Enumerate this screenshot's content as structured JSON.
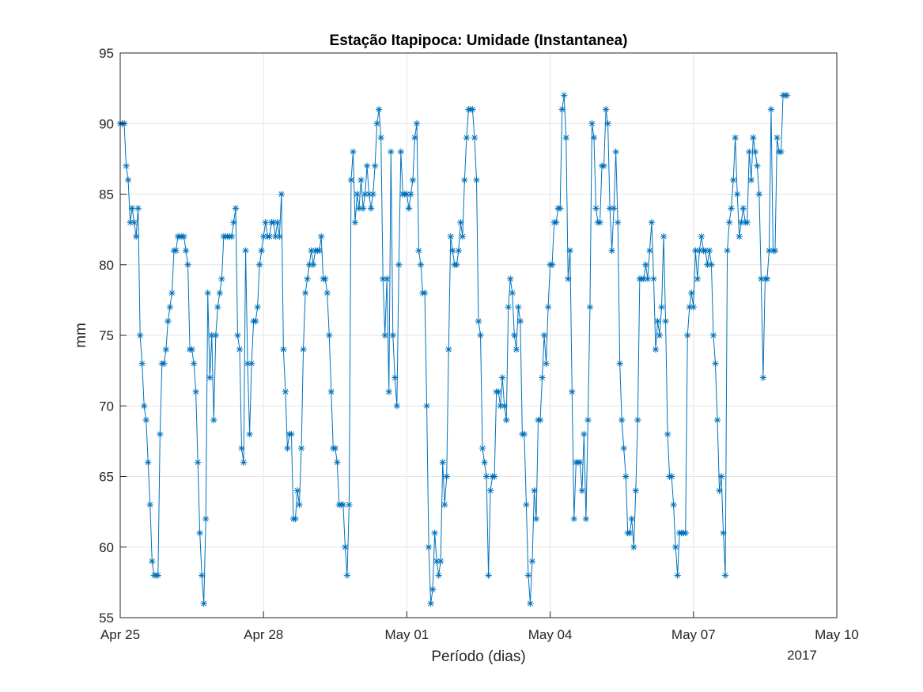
{
  "chart_data": {
    "type": "line",
    "title": "Estação Itapipoca: Umidade (Instantanea)",
    "xlabel": "Período (dias)",
    "ylabel": "mm",
    "x_ticks": [
      "Apr 25",
      "Apr 28",
      "May 01",
      "May 04",
      "May 07",
      "May 10"
    ],
    "x_tick_days": [
      0,
      3,
      6,
      9,
      12,
      15
    ],
    "x_year_label": "2017",
    "xlim_days": [
      0,
      15
    ],
    "ylim": [
      55,
      95
    ],
    "y_ticks": [
      55,
      60,
      65,
      70,
      75,
      80,
      85,
      90,
      95
    ],
    "grid": true,
    "marker": "asterisk",
    "series_color": "#0072BD",
    "x_step_hours": 1,
    "series": [
      {
        "values": [
          90,
          90,
          90,
          87,
          86,
          83,
          84,
          83,
          82,
          84,
          75,
          73,
          70,
          69,
          66,
          63,
          59,
          58,
          58,
          58,
          68,
          73,
          73,
          74,
          76,
          77,
          78,
          81,
          81,
          82,
          82,
          82,
          82,
          81,
          80,
          74,
          74,
          73,
          71,
          66,
          61,
          58,
          56,
          62,
          78,
          72,
          75,
          69,
          75,
          77,
          78,
          79,
          82,
          82,
          82,
          82,
          82,
          83,
          84,
          75,
          74,
          67,
          66,
          81,
          73,
          68,
          73,
          76,
          76,
          77,
          80,
          81,
          82,
          83,
          82,
          82,
          83,
          83,
          82,
          83,
          82,
          85,
          74,
          71,
          67,
          68,
          68,
          62,
          62,
          64,
          63,
          67,
          74,
          78,
          79,
          80,
          81,
          80,
          81,
          81,
          81,
          82,
          79,
          79,
          78,
          75,
          71,
          67,
          67,
          66,
          63,
          63,
          63,
          60,
          58,
          63,
          86,
          88,
          83,
          85,
          84,
          86,
          84,
          85,
          87,
          85,
          84,
          85,
          87,
          90,
          91,
          89,
          79,
          75,
          79,
          71,
          88,
          75,
          72,
          70,
          80,
          88,
          85,
          85,
          85,
          84,
          85,
          86,
          89,
          90,
          81,
          80,
          78,
          78,
          70,
          60,
          56,
          57,
          61,
          59,
          58,
          59,
          66,
          63,
          65,
          74,
          82,
          81,
          80,
          80,
          81,
          83,
          82,
          86,
          89,
          91,
          91,
          91,
          89,
          86,
          76,
          75,
          67,
          66,
          65,
          58,
          64,
          65,
          65,
          71,
          71,
          70,
          72,
          70,
          69,
          77,
          79,
          78,
          75,
          74,
          77,
          76,
          68,
          68,
          63,
          58,
          56,
          59,
          64,
          62,
          69,
          69,
          72,
          75,
          73,
          77,
          80,
          80,
          83,
          83,
          84,
          84,
          91,
          92,
          89,
          79,
          81,
          71,
          62,
          66,
          66,
          66,
          64,
          68,
          62,
          69,
          77,
          90,
          89,
          84,
          83,
          83,
          87,
          87,
          91,
          90,
          84,
          81,
          84,
          88,
          83,
          73,
          69,
          67,
          65,
          61,
          61,
          62,
          60,
          64,
          69,
          79,
          79,
          79,
          80,
          79,
          81,
          83,
          79,
          74,
          76,
          75,
          77,
          82,
          76,
          68,
          65,
          65,
          63,
          60,
          58,
          61,
          61,
          61,
          61,
          75,
          77,
          78,
          77,
          81,
          79,
          81,
          82,
          81,
          81,
          80,
          81,
          80,
          75,
          73,
          69,
          64,
          65,
          61,
          58,
          81,
          83,
          84,
          86,
          89,
          85,
          82,
          83,
          84,
          83,
          83,
          88,
          86,
          89,
          88,
          87,
          85,
          79,
          72,
          79,
          79,
          81,
          91,
          81,
          81,
          89,
          88,
          88,
          92,
          92,
          92
        ]
      }
    ]
  }
}
